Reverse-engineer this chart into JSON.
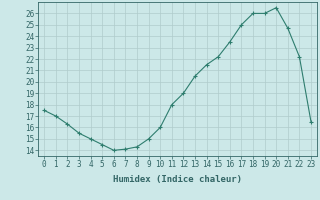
{
  "x": [
    0,
    1,
    2,
    3,
    4,
    5,
    6,
    7,
    8,
    9,
    10,
    11,
    12,
    13,
    14,
    15,
    16,
    17,
    18,
    19,
    20,
    21,
    22,
    23
  ],
  "y": [
    17.5,
    17.0,
    16.3,
    15.5,
    15.0,
    14.5,
    14.0,
    14.1,
    14.3,
    15.0,
    16.0,
    18.0,
    19.0,
    20.5,
    21.5,
    22.2,
    23.5,
    25.0,
    26.0,
    26.0,
    26.5,
    24.7,
    22.2,
    16.5
  ],
  "xlabel": "Humidex (Indice chaleur)",
  "xlim": [
    -0.5,
    23.5
  ],
  "ylim": [
    13.5,
    27.0
  ],
  "yticks": [
    14,
    15,
    16,
    17,
    18,
    19,
    20,
    21,
    22,
    23,
    24,
    25,
    26
  ],
  "xticks": [
    0,
    1,
    2,
    3,
    4,
    5,
    6,
    7,
    8,
    9,
    10,
    11,
    12,
    13,
    14,
    15,
    16,
    17,
    18,
    19,
    20,
    21,
    22,
    23
  ],
  "line_color": "#2e7d6e",
  "bg_color": "#cce8e8",
  "grid_color": "#b0cccc",
  "axis_color": "#336666",
  "label_fontsize": 6.5,
  "tick_fontsize": 5.5
}
